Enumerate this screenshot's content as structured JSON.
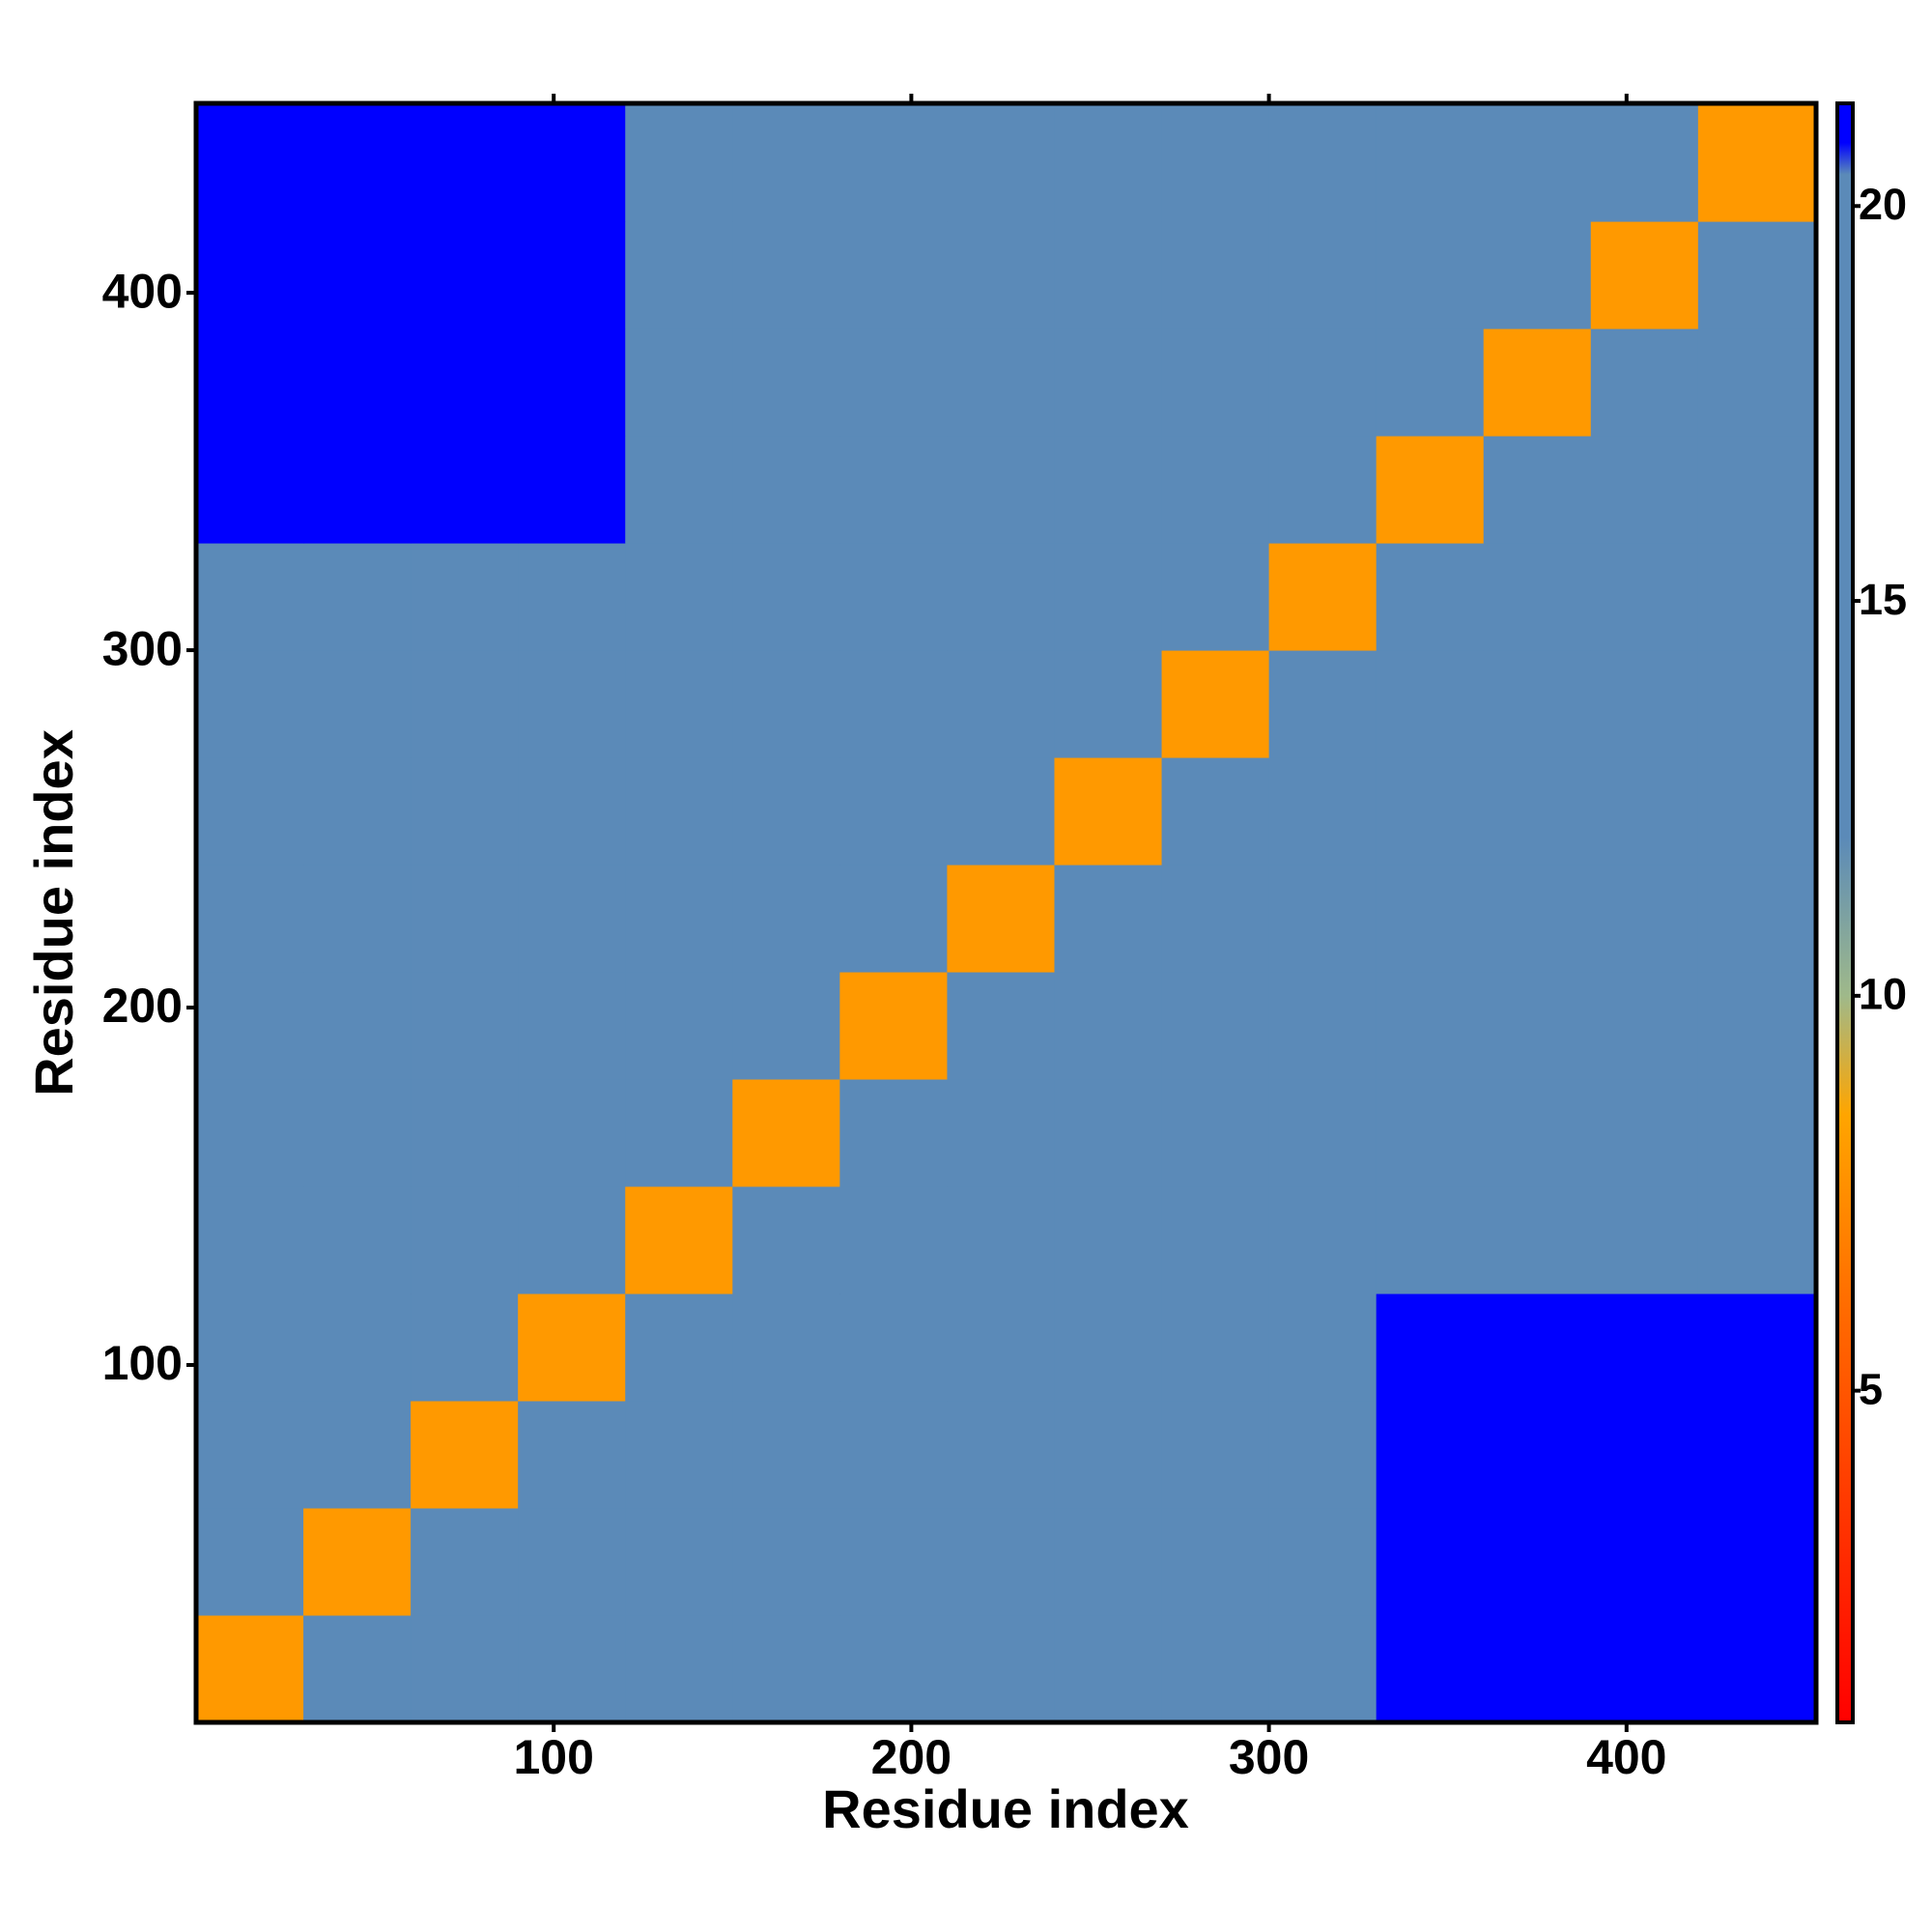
{
  "chart_data": {
    "type": "heatmap",
    "x_label": "Residue index",
    "y_label": "Residue index",
    "x_bins": [
      0,
      30,
      60,
      90,
      120,
      150,
      180,
      210,
      240,
      270,
      300,
      330,
      360,
      390,
      420,
      453
    ],
    "y_bins": [
      0,
      30,
      60,
      90,
      120,
      150,
      180,
      210,
      240,
      270,
      300,
      330,
      360,
      390,
      420,
      453
    ],
    "z": [
      [
        8,
        13,
        15,
        15,
        19,
        19,
        19,
        20,
        20,
        20,
        20,
        21,
        21,
        21,
        21
      ],
      [
        13,
        8,
        13,
        15,
        19,
        19,
        19,
        20,
        20,
        20,
        20,
        21,
        21,
        21,
        21
      ],
      [
        15,
        13,
        8,
        13,
        19,
        19,
        19,
        20,
        20,
        20,
        20,
        21,
        21,
        21,
        21
      ],
      [
        15,
        15,
        13,
        8,
        19,
        19,
        19,
        20,
        20,
        20,
        20,
        21,
        21,
        21,
        21
      ],
      [
        19,
        19,
        19,
        19,
        8,
        13,
        15,
        19,
        19,
        19,
        19,
        20,
        20,
        20,
        20
      ],
      [
        19,
        19,
        19,
        19,
        13,
        8,
        13,
        19,
        19,
        19,
        19,
        20,
        20,
        20,
        20
      ],
      [
        19,
        19,
        19,
        19,
        15,
        13,
        8,
        19,
        19,
        19,
        19,
        20,
        20,
        20,
        20
      ],
      [
        20,
        20,
        20,
        20,
        19,
        19,
        19,
        8,
        13,
        15,
        15,
        19,
        19,
        19,
        19
      ],
      [
        20,
        20,
        20,
        20,
        19,
        19,
        19,
        13,
        8,
        13,
        15,
        19,
        19,
        19,
        19
      ],
      [
        20,
        20,
        20,
        20,
        19,
        19,
        19,
        15,
        13,
        8,
        13,
        19,
        19,
        19,
        19
      ],
      [
        20,
        20,
        20,
        20,
        19,
        19,
        19,
        15,
        15,
        13,
        8,
        19,
        19,
        19,
        19
      ],
      [
        21,
        21,
        21,
        21,
        20,
        20,
        20,
        19,
        19,
        19,
        19,
        8,
        13,
        15,
        15
      ],
      [
        21,
        21,
        21,
        21,
        20,
        20,
        20,
        19,
        19,
        19,
        19,
        13,
        8,
        13,
        15
      ],
      [
        21,
        21,
        21,
        21,
        20,
        20,
        20,
        19,
        19,
        19,
        19,
        15,
        13,
        8,
        13
      ],
      [
        21,
        21,
        21,
        21,
        20,
        20,
        20,
        19,
        19,
        19,
        19,
        15,
        15,
        13,
        8
      ]
    ],
    "xlim": [
      0,
      453
    ],
    "ylim": [
      0,
      453
    ],
    "xticks": [
      100,
      200,
      300,
      400
    ],
    "yticks": [
      100,
      200,
      300,
      400
    ],
    "clim": [
      0.8,
      21.3
    ],
    "cticks": [
      5,
      10,
      15,
      20
    ],
    "colorscale": [
      {
        "value": 0.8,
        "color": "#ff0000"
      },
      {
        "value": 6,
        "color": "#ff6a00"
      },
      {
        "value": 8.5,
        "color": "#ffa500"
      },
      {
        "value": 10,
        "color": "#9fb98a"
      },
      {
        "value": 12,
        "color": "#5b8ab8"
      },
      {
        "value": 20.4,
        "color": "#5b8ab8"
      },
      {
        "value": 20.8,
        "color": "#0000ff"
      },
      {
        "value": 21.3,
        "color": "#0000ff"
      }
    ]
  }
}
